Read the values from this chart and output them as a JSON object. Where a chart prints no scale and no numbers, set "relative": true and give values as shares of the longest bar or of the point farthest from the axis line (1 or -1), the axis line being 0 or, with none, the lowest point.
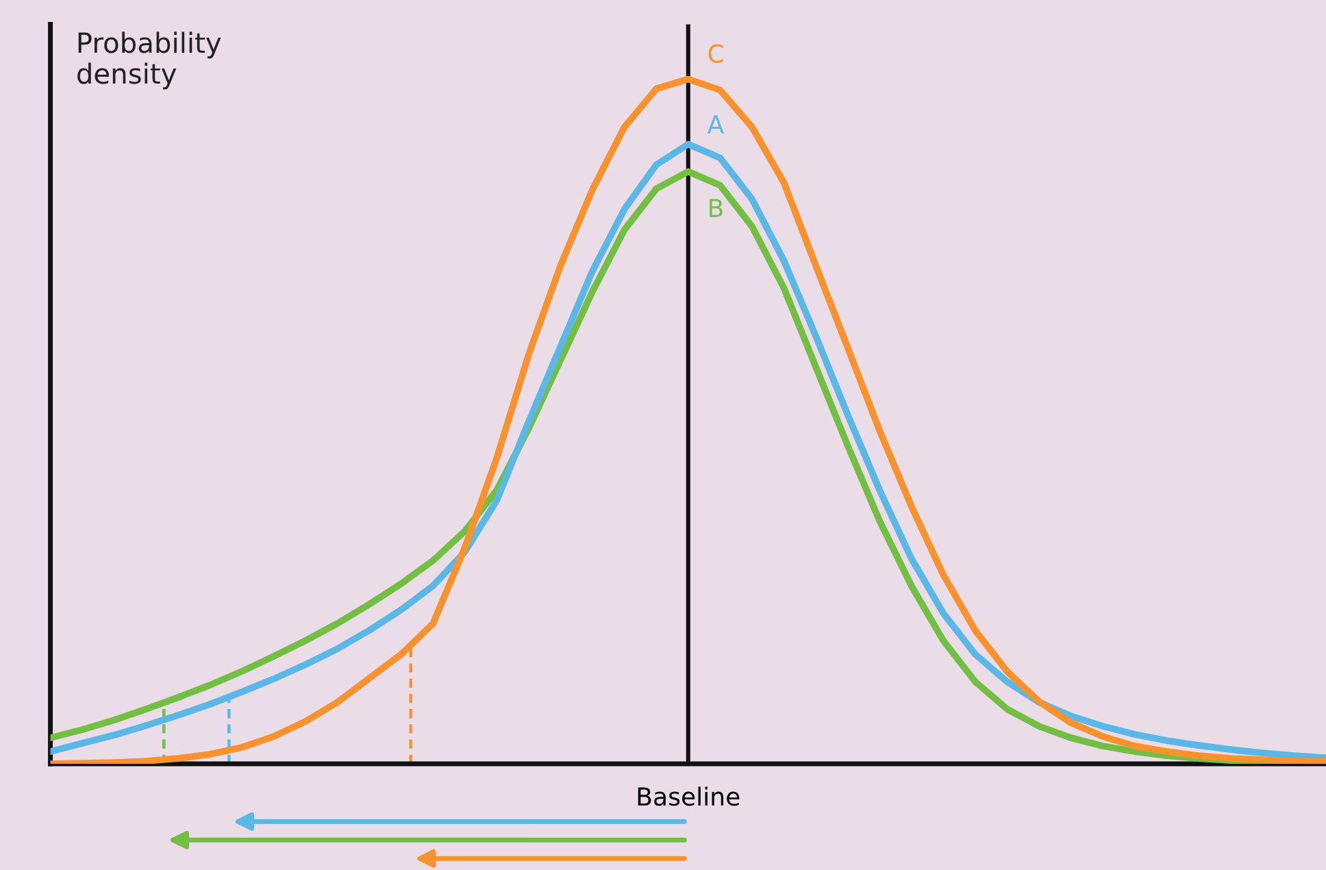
{
  "chart_data": {
    "type": "line",
    "relative": true,
    "ylabel": "Probability density",
    "legend": false,
    "marker": "none",
    "line_style": "solid",
    "categories": [
      null,
      null,
      null,
      null,
      null,
      null,
      null,
      null,
      null,
      null,
      null,
      null,
      null,
      null,
      null,
      null,
      null,
      null,
      null,
      null,
      null,
      null,
      null,
      null,
      null,
      null,
      null,
      null,
      null,
      null,
      null,
      null,
      null,
      null,
      null,
      null,
      null,
      null,
      null,
      null,
      null
    ],
    "annotations": [
      "Baseline"
    ],
    "series": [
      {
        "name": "C",
        "color": "#f7922e",
        "values": [
          0,
          0.001,
          0.002,
          0.004,
          0.008,
          0.014,
          0.024,
          0.04,
          0.062,
          0.09,
          0.125,
          0.16,
          0.205,
          0.316,
          0.447,
          0.598,
          0.728,
          0.839,
          0.93,
          0.986,
          1,
          0.984,
          0.93,
          0.849,
          0.728,
          0.608,
          0.487,
          0.376,
          0.276,
          0.195,
          0.135,
          0.091,
          0.06,
          0.04,
          0.026,
          0.018,
          0.012,
          0.008,
          0.006,
          0.004,
          0.004
        ]
      },
      {
        "name": "A",
        "color": "#5bb8e6",
        "values": [
          0.018,
          0.03,
          0.042,
          0.056,
          0.071,
          0.087,
          0.105,
          0.124,
          0.145,
          0.168,
          0.195,
          0.225,
          0.26,
          0.31,
          0.385,
          0.5,
          0.61,
          0.72,
          0.81,
          0.875,
          0.905,
          0.885,
          0.825,
          0.735,
          0.625,
          0.51,
          0.4,
          0.3,
          0.22,
          0.16,
          0.12,
          0.09,
          0.07,
          0.055,
          0.043,
          0.034,
          0.027,
          0.021,
          0.016,
          0.012,
          0.009
        ]
      },
      {
        "name": "B",
        "color": "#72bf44",
        "values": [
          0.038,
          0.05,
          0.064,
          0.08,
          0.097,
          0.115,
          0.135,
          0.157,
          0.18,
          0.205,
          0.233,
          0.263,
          0.297,
          0.34,
          0.4,
          0.49,
          0.59,
          0.69,
          0.78,
          0.84,
          0.865,
          0.845,
          0.785,
          0.695,
          0.58,
          0.465,
          0.355,
          0.26,
          0.18,
          0.12,
          0.08,
          0.055,
          0.038,
          0.026,
          0.018,
          0.012,
          0.008,
          0.005,
          0.004,
          0.003,
          0.002
        ]
      }
    ]
  }
}
